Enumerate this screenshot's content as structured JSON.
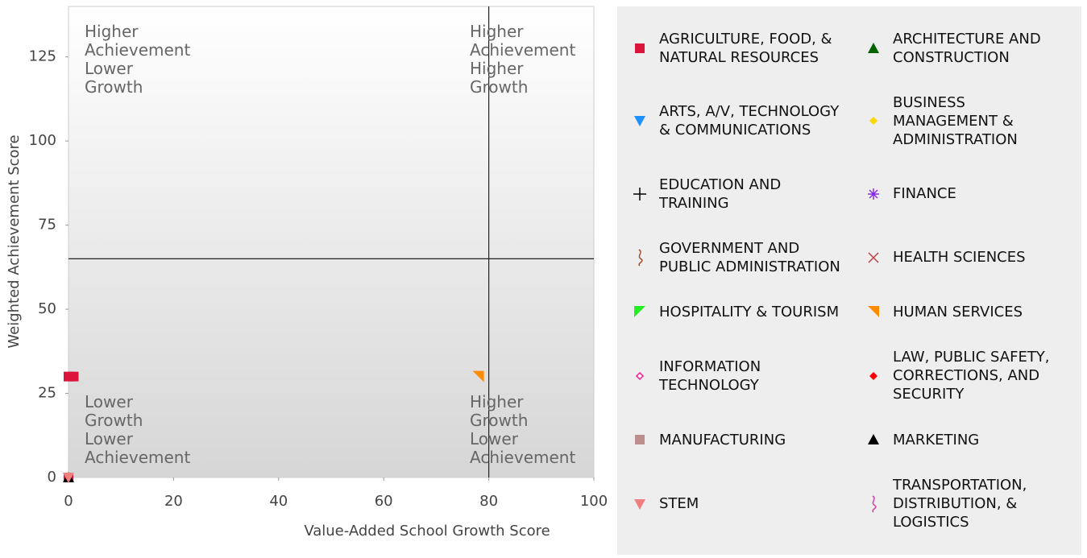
{
  "chart_data": {
    "type": "scatter",
    "x_label": "Value-Added School Growth Score",
    "y_label": "Weighted Achievement Score",
    "xlim": [
      0,
      100
    ],
    "xticks": [
      0,
      20,
      40,
      60,
      80,
      100
    ],
    "ylim": [
      0,
      140
    ],
    "yticks": [
      0,
      25,
      50,
      75,
      100,
      125
    ],
    "quadrant_x": 80,
    "quadrant_y": 65,
    "annotations": [
      "Higher Achievement Lower Growth",
      "Higher Achievement Higher Growth",
      "Lower Growth Lower Achievement",
      "Higher Growth Lower Achievement"
    ],
    "series": [
      {
        "name": "AGRICULTURE, FOOD, & NATURAL RESOURCES",
        "color": "#dc143c",
        "marker": "square",
        "x": [
          0,
          1,
          0
        ],
        "values": [
          30,
          30,
          0
        ]
      },
      {
        "name": "ARCHITECTURE AND CONSTRUCTION",
        "color": "#006400",
        "marker": "triangle-up",
        "x": [],
        "values": []
      },
      {
        "name": "ARTS, A/V, TECHNOLOGY & COMMUNICATIONS",
        "color": "#1e90ff",
        "marker": "triangle-down",
        "x": [],
        "values": []
      },
      {
        "name": "BUSINESS MANAGEMENT & ADMINISTRATION",
        "color": "#ffd700",
        "marker": "diamond",
        "x": [],
        "values": []
      },
      {
        "name": "EDUCATION AND TRAINING",
        "color": "#000000",
        "marker": "plus",
        "x": [],
        "values": []
      },
      {
        "name": "FINANCE",
        "color": "#8a2be2",
        "marker": "asterisk",
        "x": [],
        "values": []
      },
      {
        "name": "GOVERNMENT AND PUBLIC ADMINISTRATION",
        "color": "#a0522d",
        "marker": "wave",
        "x": [],
        "values": []
      },
      {
        "name": "HEALTH SCIENCES",
        "color": "#c04040",
        "marker": "cross",
        "x": [],
        "values": []
      },
      {
        "name": "HOSPITALITY & TOURISM",
        "color": "#22ee22",
        "marker": "wedge-left",
        "x": [],
        "values": []
      },
      {
        "name": "HUMAN SERVICES",
        "color": "#ff8c00",
        "marker": "wedge-right",
        "x": [
          78
        ],
        "values": [
          30
        ]
      },
      {
        "name": "INFORMATION TECHNOLOGY",
        "color": "#ff1493",
        "marker": "diamond-open",
        "x": [],
        "values": []
      },
      {
        "name": "LAW, PUBLIC SAFETY, CORRECTIONS, AND SECURITY",
        "color": "#ff0000",
        "marker": "diamond",
        "x": [
          0
        ],
        "values": [
          0
        ]
      },
      {
        "name": "MANUFACTURING",
        "color": "#bc8f8f",
        "marker": "square",
        "x": [],
        "values": []
      },
      {
        "name": "MARKETING",
        "color": "#000000",
        "marker": "triangle-up",
        "x": [
          0
        ],
        "values": [
          0
        ]
      },
      {
        "name": "STEM",
        "color": "#f08080",
        "marker": "triangle-down",
        "x": [
          0
        ],
        "values": [
          0
        ]
      },
      {
        "name": "TRANSPORTATION, DISTRIBUTION, & LOGISTICS",
        "color": "#cc44aa",
        "marker": "wave",
        "x": [],
        "values": []
      }
    ]
  }
}
